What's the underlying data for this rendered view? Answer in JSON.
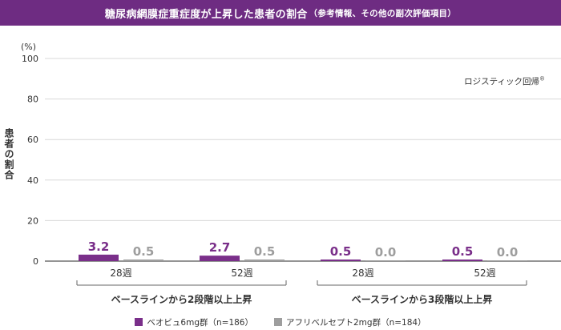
{
  "header": {
    "title": "糖尿病網膜症重症度が上昇した患者の割合",
    "subtitle": "（参考情報、その他の副次評価項目）"
  },
  "colors": {
    "header_bg": "#6e2c82",
    "beovu": "#7a2f8a",
    "aflibercept": "#9e9e9e",
    "grid": "#d8d8d8",
    "axis": "#555555"
  },
  "chart_data": {
    "type": "bar",
    "unit": "(%)",
    "ylabel": "患者の割合",
    "ylim": [
      0,
      100
    ],
    "yticks": [
      0,
      20,
      40,
      60,
      80,
      100
    ],
    "grid": true,
    "legend_position": "bottom",
    "annotation": "ロジスティック回帰",
    "annotation_mark": "®",
    "groups": [
      {
        "label": "ベースラインから2段階以上上昇",
        "categories": [
          "28週",
          "52週"
        ]
      },
      {
        "label": "ベースラインから3段階以上上昇",
        "categories": [
          "28週",
          "52週"
        ]
      }
    ],
    "series": [
      {
        "name": "ベオビュ6mg群（n=186）",
        "values": [
          3.2,
          2.7,
          0.5,
          0.5
        ]
      },
      {
        "name": "アフリベルセプト2mg群（n=184）",
        "values": [
          0.5,
          0.5,
          0.0,
          0.0
        ]
      }
    ],
    "data_labels": [
      [
        "3.2",
        "2.7",
        "0.5",
        "0.5"
      ],
      [
        "0.5",
        "0.5",
        "0.0",
        "0.0"
      ]
    ]
  }
}
